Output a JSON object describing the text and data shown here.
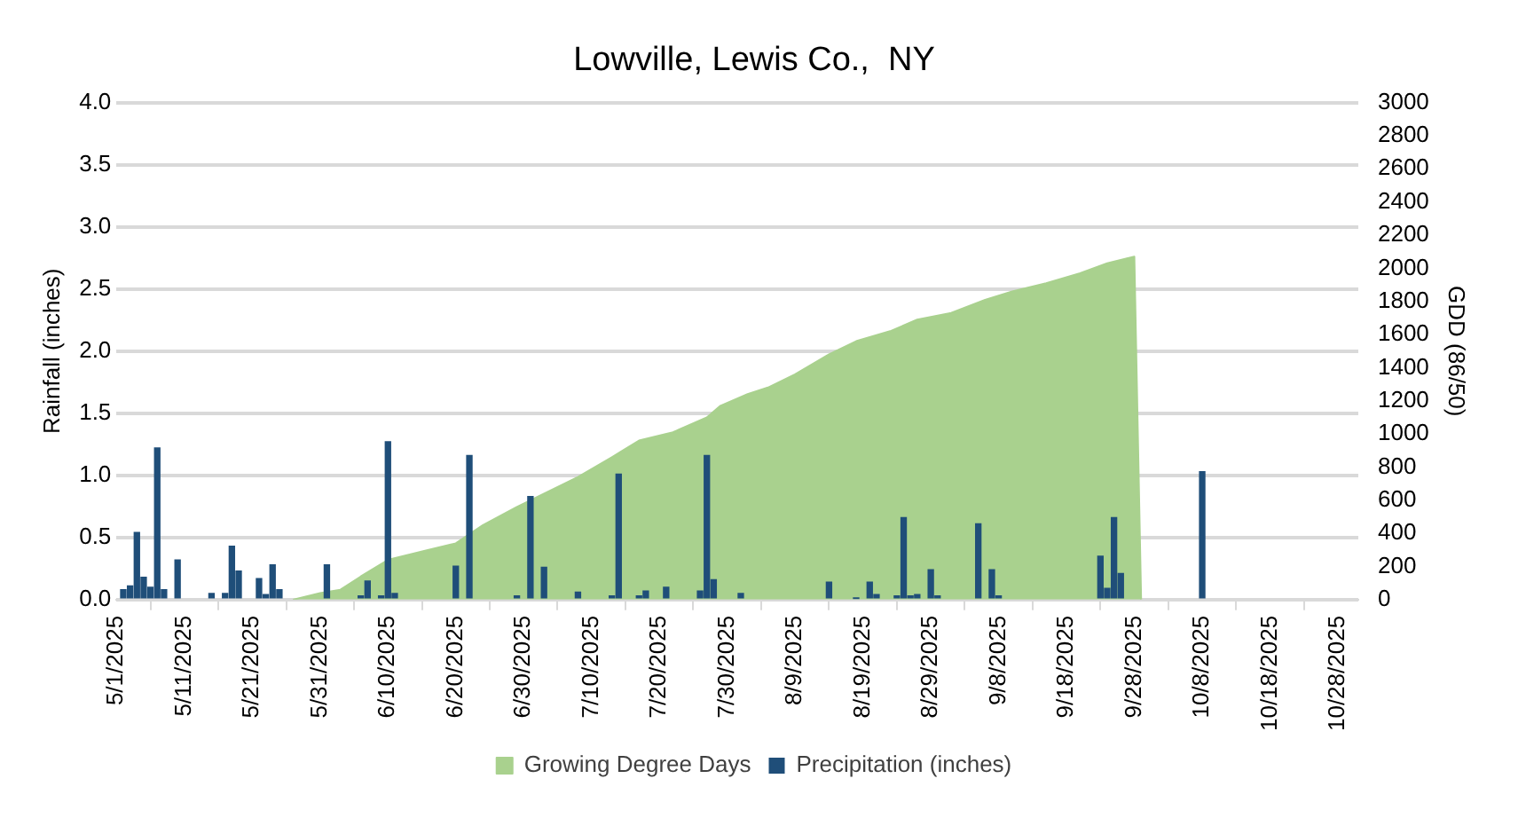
{
  "chart_data": {
    "type": "bar",
    "title": "Lowville, Lewis Co.,  NY",
    "ylabel": "Rainfall (inches)",
    "y2label": "GDD (86/50)",
    "series": [
      {
        "name": "Growing Degree Days",
        "type": "area",
        "axis": "y2",
        "color": "#a9d18e",
        "x": [
          "2025-05-27",
          "2025-05-31",
          "2025-06-03",
          "2025-06-06",
          "2025-06-10",
          "2025-06-16",
          "2025-06-20",
          "2025-06-24",
          "2025-06-29",
          "2025-07-03",
          "2025-07-08",
          "2025-07-13",
          "2025-07-17",
          "2025-07-22",
          "2025-07-27",
          "2025-07-29",
          "2025-08-02",
          "2025-08-05",
          "2025-08-09",
          "2025-08-14",
          "2025-08-18",
          "2025-08-23",
          "2025-08-27",
          "2025-09-01",
          "2025-09-06",
          "2025-09-10",
          "2025-09-15",
          "2025-09-20",
          "2025-09-24",
          "2025-09-28",
          "2025-09-29"
        ],
        "values": [
          0,
          40,
          60,
          140,
          240,
          300,
          340,
          450,
          560,
          640,
          740,
          860,
          960,
          1010,
          1100,
          1170,
          1240,
          1280,
          1360,
          1480,
          1560,
          1620,
          1690,
          1730,
          1810,
          1860,
          1910,
          1970,
          2030,
          2070,
          0
        ]
      },
      {
        "name": "Precipitation (inches)",
        "color": "#1f4e79",
        "x": [
          "2025-05-02",
          "2025-05-03",
          "2025-05-04",
          "2025-05-05",
          "2025-05-06",
          "2025-05-07",
          "2025-05-08",
          "2025-05-10",
          "2025-05-15",
          "2025-05-17",
          "2025-05-18",
          "2025-05-19",
          "2025-05-22",
          "2025-05-23",
          "2025-05-24",
          "2025-05-25",
          "2025-06-01",
          "2025-06-06",
          "2025-06-07",
          "2025-06-09",
          "2025-06-10",
          "2025-06-11",
          "2025-06-20",
          "2025-06-22",
          "2025-06-29",
          "2025-07-01",
          "2025-07-03",
          "2025-07-08",
          "2025-07-13",
          "2025-07-14",
          "2025-07-17",
          "2025-07-18",
          "2025-07-21",
          "2025-07-26",
          "2025-07-27",
          "2025-07-28",
          "2025-08-01",
          "2025-08-14",
          "2025-08-18",
          "2025-08-20",
          "2025-08-21",
          "2025-08-24",
          "2025-08-25",
          "2025-08-26",
          "2025-08-27",
          "2025-08-29",
          "2025-08-30",
          "2025-09-05",
          "2025-09-07",
          "2025-09-08",
          "2025-09-23",
          "2025-09-24",
          "2025-09-25",
          "2025-09-26",
          "2025-10-08"
        ],
        "values": [
          0.08,
          0.11,
          0.54,
          0.18,
          0.1,
          1.22,
          0.08,
          0.32,
          0.05,
          0.05,
          0.43,
          0.23,
          0.17,
          0.04,
          0.28,
          0.08,
          0.28,
          0.03,
          0.15,
          0.03,
          1.27,
          0.05,
          0.27,
          1.16,
          0.03,
          0.83,
          0.26,
          0.06,
          0.03,
          1.01,
          0.03,
          0.07,
          0.1,
          0.07,
          1.16,
          0.16,
          0.05,
          0.14,
          0.01,
          0.14,
          0.04,
          0.03,
          0.66,
          0.03,
          0.04,
          0.24,
          0.03,
          0.61,
          0.24,
          0.03,
          0.35,
          0.09,
          0.66,
          0.21,
          1.03
        ]
      }
    ],
    "xlim": [
      "2025-05-01",
      "2025-10-31"
    ],
    "xticks": [
      {
        "value": "2025-05-01",
        "label": "5/1/2025"
      },
      {
        "value": "2025-05-11",
        "label": "5/11/2025"
      },
      {
        "value": "2025-05-21",
        "label": "5/21/2025"
      },
      {
        "value": "2025-05-31",
        "label": "5/31/2025"
      },
      {
        "value": "2025-06-10",
        "label": "6/10/2025"
      },
      {
        "value": "2025-06-20",
        "label": "6/20/2025"
      },
      {
        "value": "2025-06-30",
        "label": "6/30/2025"
      },
      {
        "value": "2025-07-10",
        "label": "7/10/2025"
      },
      {
        "value": "2025-07-20",
        "label": "7/20/2025"
      },
      {
        "value": "2025-07-30",
        "label": "7/30/2025"
      },
      {
        "value": "2025-08-09",
        "label": "8/9/2025"
      },
      {
        "value": "2025-08-19",
        "label": "8/19/2025"
      },
      {
        "value": "2025-08-29",
        "label": "8/29/2025"
      },
      {
        "value": "2025-09-08",
        "label": "9/8/2025"
      },
      {
        "value": "2025-09-18",
        "label": "9/18/2025"
      },
      {
        "value": "2025-09-28",
        "label": "9/28/2025"
      },
      {
        "value": "2025-10-08",
        "label": "10/8/2025"
      },
      {
        "value": "2025-10-18",
        "label": "10/18/2025"
      },
      {
        "value": "2025-10-28",
        "label": "10/28/2025"
      }
    ],
    "ylim": [
      0,
      4
    ],
    "yticks": [
      {
        "value": 0,
        "label": "0.0"
      },
      0.5,
      {
        "value": 1,
        "label": "1.0"
      },
      1.5,
      {
        "value": 2,
        "label": "2.0"
      },
      2.5,
      {
        "value": 3,
        "label": "3.0"
      },
      3.5,
      {
        "value": 4,
        "label": "4.0"
      }
    ],
    "y2lim": [
      0,
      3000
    ],
    "y2ticks": [
      0,
      200,
      400,
      600,
      800,
      1000,
      1200,
      1400,
      1600,
      1800,
      2000,
      2200,
      2400,
      2600,
      2800,
      3000
    ],
    "grid": "y",
    "legend": "bottom"
  }
}
